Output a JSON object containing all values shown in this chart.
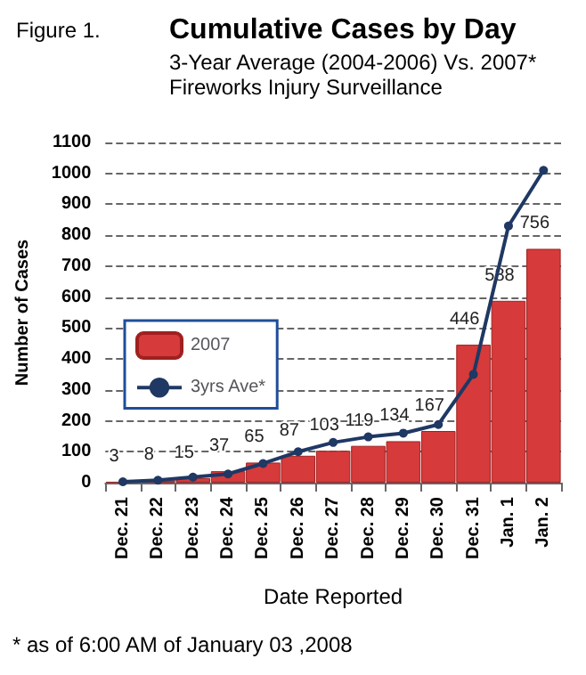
{
  "chart_data": {
    "type": "bar",
    "title": "Cumulative Cases by Day",
    "subtitle": "3-Year Average (2004-2006) Vs. 2007*\nFireworks Injury Surveillance",
    "xlabel": "Date Reported",
    "ylabel": "Number of Cases",
    "annotations": [
      "Figure 1.",
      "* as of 6:00 AM of January 03 ,2008"
    ],
    "categories": [
      "Dec. 21",
      "Dec. 22",
      "Dec. 23",
      "Dec. 24",
      "Dec. 25",
      "Dec. 26",
      "Dec. 27",
      "Dec. 28",
      "Dec. 29",
      "Dec. 30",
      "Dec. 31",
      "Jan. 1",
      "Jan. 2"
    ],
    "series": [
      {
        "name": "2007",
        "color": "#d63a3a",
        "values": [
          3,
          8,
          15,
          37,
          65,
          87,
          103,
          119,
          134,
          167,
          446,
          588,
          756
        ],
        "value_labels": [
          "3",
          "8",
          "15",
          "37",
          "65",
          "87",
          "103",
          "119",
          "134",
          "167",
          "446",
          "588",
          "756"
        ]
      },
      {
        "name": "3yrs Ave*",
        "type": "line",
        "color": "#1f3864",
        "marker": "circle",
        "values": [
          3,
          8,
          18,
          28,
          62,
          100,
          130,
          148,
          160,
          188,
          350,
          830,
          1010
        ]
      }
    ],
    "ylim": [
      0,
      1100
    ],
    "yticks": [
      0,
      100,
      200,
      300,
      400,
      500,
      600,
      700,
      800,
      900,
      1000,
      1100
    ],
    "grid": "y",
    "legend": "left"
  }
}
